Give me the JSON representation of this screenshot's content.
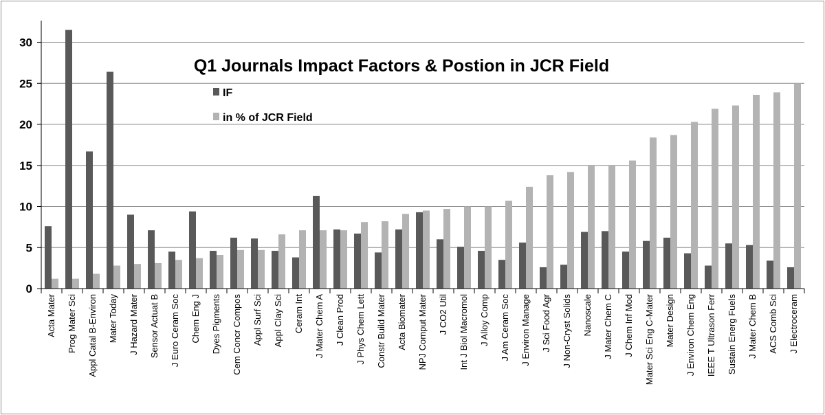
{
  "chart_data": {
    "type": "bar",
    "title": "Q1 Journals Impact Factors & Postion in JCR Field",
    "xlabel": "",
    "ylabel": "",
    "ylim": [
      0,
      32
    ],
    "yticks": [
      0,
      5,
      10,
      15,
      20,
      25,
      30
    ],
    "grid": true,
    "legend_position": "top-left",
    "categories": [
      "Acta Mater",
      "Prog Mater Sci",
      "Appl Catal B-Environ",
      "Mater Today",
      "J Hazard Mater",
      "Sensor Actuat B",
      "J Euro Ceram Soc",
      "Chem Eng J",
      "Dyes Pigments",
      "Cem Concr Compos",
      "Appl Surf Sci",
      "Appl Clay Sci",
      "Ceram Int",
      "J Mater Chem A",
      "J Clean Prod",
      "J Phys Chem Lett",
      "Constr Build Mater",
      "Acta Biomater",
      "NPJ Comput Mater",
      "J CO2 Util",
      "Int J Biol Macromol",
      "J Alloy Comp",
      "J Am Ceram Soc",
      "J Environ Manage",
      "J Sci Food Agr",
      "J Non-Cryst Solids",
      "Nanoscale",
      "J Mater Chem C",
      "J Chem Inf Mod",
      "Mater Sci Eng C-Mater",
      "Mater Design",
      "J Environ Chem Eng",
      "IEEE T Ultrason Ferr",
      "Sustain Energ Fuels",
      "J Mater Chem B",
      "ACS Comb Sci",
      "J Electroceram"
    ],
    "series": [
      {
        "name": "IF",
        "color": "#595959",
        "values": [
          7.6,
          31.5,
          16.7,
          26.4,
          9.0,
          7.1,
          4.5,
          9.4,
          4.6,
          6.2,
          6.1,
          4.6,
          3.8,
          11.3,
          7.2,
          6.7,
          4.4,
          7.2,
          9.3,
          6.0,
          5.1,
          4.6,
          3.5,
          5.6,
          2.6,
          2.9,
          6.9,
          7.0,
          4.5,
          5.8,
          6.2,
          4.3,
          2.8,
          5.5,
          5.3,
          3.4,
          2.6
        ]
      },
      {
        "name": "in % of JCR Field",
        "color": "#b3b3b3",
        "values": [
          1.2,
          1.2,
          1.8,
          2.8,
          3.0,
          3.1,
          3.5,
          3.7,
          4.1,
          4.7,
          4.7,
          6.6,
          7.1,
          7.1,
          7.1,
          8.1,
          8.2,
          9.1,
          9.5,
          9.7,
          10.0,
          10.0,
          10.7,
          12.4,
          13.8,
          14.2,
          15.0,
          15.0,
          15.6,
          18.4,
          18.7,
          20.3,
          21.9,
          22.3,
          23.6,
          23.9,
          25.0
        ]
      }
    ]
  }
}
